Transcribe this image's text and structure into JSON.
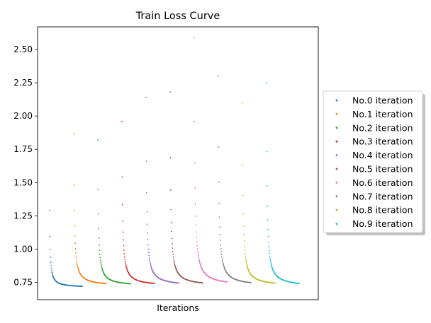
{
  "chart_data": {
    "type": "scatter",
    "title": "Train Loss Curve",
    "xlabel": "Iterations",
    "ylabel": "",
    "ylim": [
      0.62,
      2.67
    ],
    "yticks": [
      "0.75",
      "1.00",
      "1.25",
      "1.50",
      "1.75",
      "2.00",
      "2.25",
      "2.50"
    ],
    "x_ticks_visible": false,
    "grid": false,
    "legend_position": "outside-right",
    "min_loss": 0.71,
    "series": [
      {
        "name": "No.0 iteration",
        "color": "#1f77b4",
        "start": 1.29,
        "end": 0.71
      },
      {
        "name": "No.1 iteration",
        "color": "#ff7f0e",
        "start": 1.87,
        "end": 0.72
      },
      {
        "name": "No.2 iteration",
        "color": "#2ca02c",
        "start": 1.82,
        "end": 0.72
      },
      {
        "name": "No.3 iteration",
        "color": "#d62728",
        "start": 1.96,
        "end": 0.72
      },
      {
        "name": "No.4 iteration",
        "color": "#9467bd",
        "start": 2.14,
        "end": 0.72
      },
      {
        "name": "No.5 iteration",
        "color": "#8c564b",
        "start": 2.18,
        "end": 0.72
      },
      {
        "name": "No.6 iteration",
        "color": "#e377c2",
        "start": 2.59,
        "end": 0.72
      },
      {
        "name": "No.7 iteration",
        "color": "#7f7f7f",
        "start": 2.3,
        "end": 0.72
      },
      {
        "name": "No.8 iteration",
        "color": "#bcbd22",
        "start": 2.1,
        "end": 0.72
      },
      {
        "name": "No.9 iteration",
        "color": "#17becf",
        "start": 2.25,
        "end": 0.715
      }
    ]
  }
}
